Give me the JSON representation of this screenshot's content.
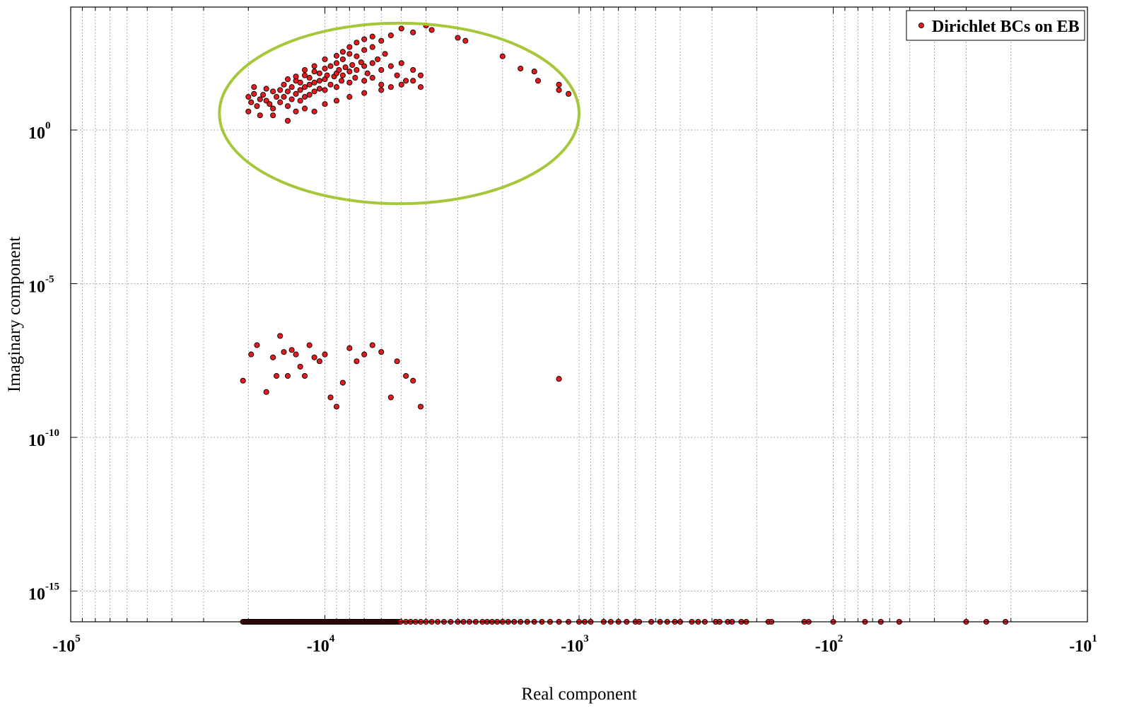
{
  "chart_data": {
    "type": "scatter",
    "title": "",
    "xlabel": "Real component",
    "ylabel": "Imaginary component",
    "x_scale": "log-negative",
    "y_scale": "log",
    "xlim": [
      -100000,
      -10
    ],
    "ylim": [
      1e-16,
      10000.0
    ],
    "grid": true,
    "legend_position": "top-right",
    "x_ticks": [
      {
        "base": "-10",
        "exp": "5",
        "value": -100000
      },
      {
        "base": "-10",
        "exp": "4",
        "value": -10000
      },
      {
        "base": "-10",
        "exp": "3",
        "value": -1000
      },
      {
        "base": "-10",
        "exp": "2",
        "value": -100
      },
      {
        "base": "-10",
        "exp": "1",
        "value": -10
      }
    ],
    "y_ticks": [
      {
        "base": "10",
        "exp": "0",
        "value": 1
      },
      {
        "base": "10",
        "exp": "-5",
        "value": 1e-05
      },
      {
        "base": "10",
        "exp": "-10",
        "value": 1e-10
      },
      {
        "base": "10",
        "exp": "-15",
        "value": 1e-15
      }
    ],
    "annotation": {
      "shape": "ellipse",
      "color": "#a6c73a",
      "x_range": [
        -26000,
        -1000
      ],
      "y_range": [
        0.004,
        3000
      ]
    },
    "series": [
      {
        "name": "Dirichlet BCs on EB",
        "color": "#e41a1c",
        "edge_color": "#000000",
        "points": [
          [
            -20000,
            12
          ],
          [
            -19500,
            8
          ],
          [
            -19000,
            15
          ],
          [
            -18500,
            6
          ],
          [
            -18000,
            10
          ],
          [
            -17500,
            14
          ],
          [
            -17000,
            9
          ],
          [
            -16500,
            7
          ],
          [
            -16000,
            5
          ],
          [
            -15500,
            12
          ],
          [
            -15000,
            20
          ],
          [
            -15000,
            8
          ],
          [
            -14500,
            30
          ],
          [
            -14500,
            12
          ],
          [
            -14000,
            18
          ],
          [
            -14000,
            6
          ],
          [
            -13500,
            25
          ],
          [
            -13500,
            10
          ],
          [
            -13000,
            40
          ],
          [
            -13000,
            15
          ],
          [
            -12500,
            35
          ],
          [
            -12500,
            20
          ],
          [
            -12500,
            9
          ],
          [
            -12000,
            60
          ],
          [
            -12000,
            25
          ],
          [
            -12000,
            12
          ],
          [
            -11500,
            50
          ],
          [
            -11500,
            30
          ],
          [
            -11500,
            14
          ],
          [
            -11000,
            80
          ],
          [
            -11000,
            35
          ],
          [
            -11000,
            18
          ],
          [
            -10500,
            70
          ],
          [
            -10500,
            40
          ],
          [
            -10500,
            22
          ],
          [
            -10000,
            100
          ],
          [
            -10000,
            45
          ],
          [
            -10000,
            20
          ],
          [
            -9800,
            60
          ],
          [
            -9500,
            120
          ],
          [
            -9500,
            30
          ],
          [
            -9200,
            55
          ],
          [
            -9000,
            150
          ],
          [
            -9000,
            70
          ],
          [
            -9000,
            25
          ],
          [
            -8800,
            90
          ],
          [
            -8600,
            40
          ],
          [
            -8500,
            200
          ],
          [
            -8500,
            60
          ],
          [
            -8300,
            110
          ],
          [
            -8000,
            300
          ],
          [
            -8000,
            80
          ],
          [
            -8000,
            35
          ],
          [
            -7800,
            130
          ],
          [
            -7600,
            50
          ],
          [
            -7500,
            250
          ],
          [
            -7500,
            90
          ],
          [
            -7200,
            160
          ],
          [
            -7000,
            400
          ],
          [
            -7000,
            120
          ],
          [
            -7000,
            40
          ],
          [
            -6800,
            70
          ],
          [
            -6500,
            500
          ],
          [
            -6500,
            150
          ],
          [
            -6500,
            50
          ],
          [
            -6200,
            200
          ],
          [
            -6000,
            800
          ],
          [
            -6000,
            90
          ],
          [
            -6000,
            30
          ],
          [
            -5800,
            300
          ],
          [
            -5500,
            1200
          ],
          [
            -5500,
            120
          ],
          [
            -5200,
            60
          ],
          [
            -5000,
            2000
          ],
          [
            -5000,
            150
          ],
          [
            -4800,
            40
          ],
          [
            -4500,
            1500
          ],
          [
            -4500,
            90
          ],
          [
            -4200,
            25
          ],
          [
            -4000,
            2500
          ],
          [
            -3800,
            1800
          ],
          [
            -3000,
            1000
          ],
          [
            -2800,
            800
          ],
          [
            -2000,
            250
          ],
          [
            -1700,
            100
          ],
          [
            -1500,
            80
          ],
          [
            -1450,
            40
          ],
          [
            -1200,
            30
          ],
          [
            -1200,
            20
          ],
          [
            -1100,
            15
          ],
          [
            -19000,
            25
          ],
          [
            -17000,
            22
          ],
          [
            -16000,
            18
          ],
          [
            -14000,
            45
          ],
          [
            -13000,
            55
          ],
          [
            -12000,
            90
          ],
          [
            -11000,
            120
          ],
          [
            -10000,
            200
          ],
          [
            -9000,
            260
          ],
          [
            -8500,
            350
          ],
          [
            -8000,
            500
          ],
          [
            -7500,
            700
          ],
          [
            -7000,
            900
          ],
          [
            -6500,
            1100
          ],
          [
            -20000,
            4
          ],
          [
            -18000,
            3
          ],
          [
            -16000,
            3
          ],
          [
            -14000,
            2
          ],
          [
            -13000,
            4
          ],
          [
            -12000,
            5
          ],
          [
            -11000,
            4
          ],
          [
            -10000,
            7
          ],
          [
            -9000,
            9
          ],
          [
            -8000,
            12
          ],
          [
            -7000,
            16
          ],
          [
            -6000,
            20
          ],
          [
            -5500,
            25
          ],
          [
            -5000,
            30
          ],
          [
            -4500,
            40
          ],
          [
            -4200,
            60
          ],
          [
            -21000,
            7e-09
          ],
          [
            -19500,
            5e-08
          ],
          [
            -18500,
            1e-07
          ],
          [
            -17000,
            3e-09
          ],
          [
            -16000,
            4e-08
          ],
          [
            -15500,
            1e-08
          ],
          [
            -15000,
            2e-07
          ],
          [
            -14500,
            6e-08
          ],
          [
            -14000,
            1e-08
          ],
          [
            -13500,
            7e-08
          ],
          [
            -13000,
            5e-08
          ],
          [
            -12500,
            2e-08
          ],
          [
            -12000,
            1e-08
          ],
          [
            -11500,
            1e-07
          ],
          [
            -11000,
            4e-08
          ],
          [
            -10500,
            3e-08
          ],
          [
            -10000,
            5e-08
          ],
          [
            -9500,
            2e-09
          ],
          [
            -9000,
            1e-09
          ],
          [
            -8500,
            6e-09
          ],
          [
            -8000,
            8e-08
          ],
          [
            -7500,
            3e-08
          ],
          [
            -7000,
            5e-08
          ],
          [
            -6500,
            1e-07
          ],
          [
            -6000,
            6e-08
          ],
          [
            -5500,
            2e-09
          ],
          [
            -5200,
            3e-08
          ],
          [
            -4800,
            1e-08
          ],
          [
            -4500,
            7e-09
          ],
          [
            -4200,
            1e-09
          ],
          [
            -1200,
            8e-09
          ]
        ]
      }
    ]
  }
}
